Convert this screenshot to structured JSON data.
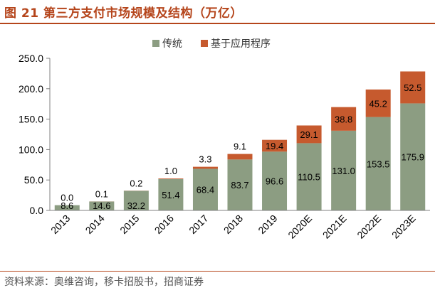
{
  "header": {
    "figure_title": "图 21 第三方支付市场规模及结构（万亿）"
  },
  "footer": {
    "source": "资料来源：奥维咨询，移卡招股书，招商证券"
  },
  "colors": {
    "traditional": "#8c9d82",
    "mini_program": "#c65a2e",
    "accent": "#b5451b",
    "axis": "#808080"
  },
  "chart_data": {
    "type": "bar",
    "stacked": true,
    "categories": [
      "2013",
      "2014",
      "2015",
      "2016",
      "2017",
      "2018",
      "2019",
      "2020E",
      "2021E",
      "2022E",
      "2023E"
    ],
    "series": [
      {
        "name": "传统",
        "values": [
          8.6,
          14.6,
          32.2,
          51.4,
          68.4,
          83.7,
          96.6,
          110.5,
          131.0,
          153.5,
          175.9
        ]
      },
      {
        "name": "基于应用程序",
        "values": [
          0.0,
          0.1,
          0.2,
          1.0,
          3.3,
          9.1,
          19.4,
          29.1,
          38.8,
          45.2,
          52.5
        ]
      }
    ],
    "value_labels": [
      [
        "8.6",
        "14.6",
        "32.2",
        "51.4",
        "68.4",
        "83.7",
        "96.6",
        "110.5",
        "131.0",
        "153.5",
        "175.9"
      ],
      [
        "0.0",
        "0.1",
        "0.2",
        "1.0",
        "3.3",
        "9.1",
        "19.4",
        "29.1",
        "38.8",
        "45.2",
        "52.5"
      ]
    ],
    "ylim": [
      0,
      250
    ],
    "yticks": [
      "0.0",
      "50.0",
      "100.0",
      "150.0",
      "200.0",
      "250.0"
    ],
    "legend_position": "top-center",
    "grid": false
  }
}
